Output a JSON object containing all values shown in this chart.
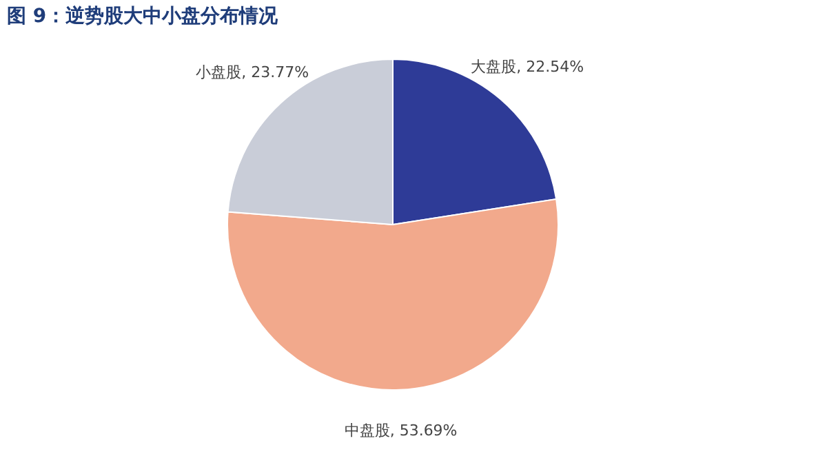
{
  "chart_data": {
    "type": "pie",
    "title": "图 9：逆势股大中小盘分布情况",
    "categories": [
      "大盘股",
      "中盘股",
      "小盘股"
    ],
    "values": [
      22.54,
      53.69,
      23.77
    ],
    "value_labels": [
      "22.54%",
      "53.69%",
      "23.77%"
    ],
    "colors": [
      "#2e3b97",
      "#f2a98c",
      "#c9cdd8"
    ],
    "legend": false
  }
}
